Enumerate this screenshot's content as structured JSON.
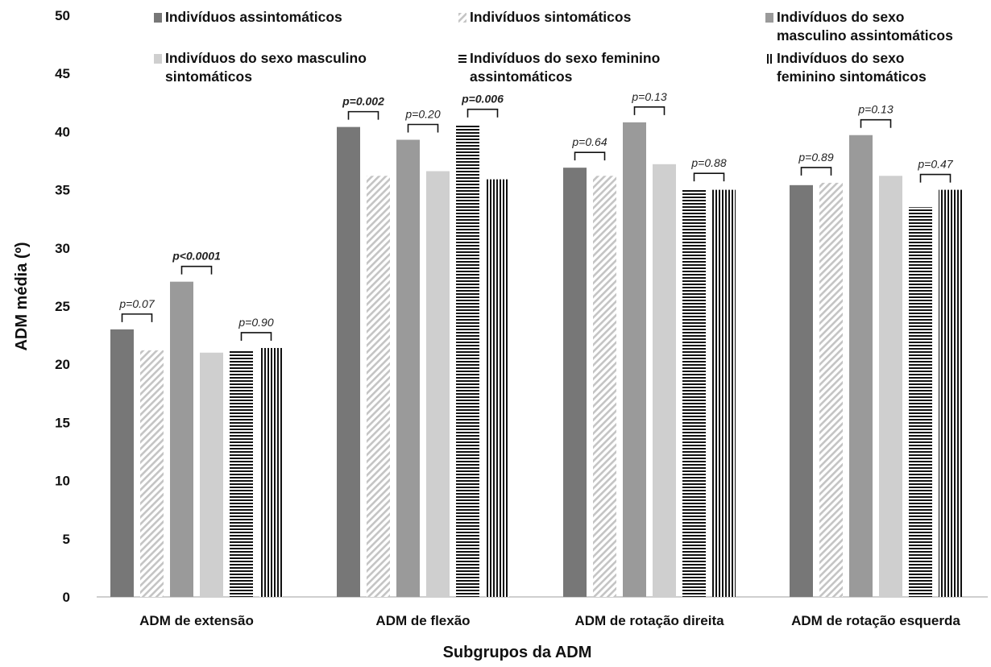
{
  "chart_data": {
    "type": "bar",
    "title": "",
    "xlabel": "Subgrupos da ADM",
    "ylabel": "ADM média (º)",
    "ylim": [
      0,
      50
    ],
    "yticks": [
      0,
      5,
      10,
      15,
      20,
      25,
      30,
      35,
      40,
      45,
      50
    ],
    "grid": false,
    "legend_position": "top",
    "categories": [
      "ADM de extensão",
      "ADM de flexão",
      "ADM de rotação direita",
      "ADM de rotação esquerda"
    ],
    "series": [
      {
        "name": "Indivíduos assintomáticos",
        "values": [
          23.0,
          40.4,
          36.9,
          35.4
        ],
        "color": "#777777",
        "pattern": "solid"
      },
      {
        "name": "Indivíduos sintomáticos",
        "values": [
          21.2,
          36.2,
          36.2,
          35.6
        ],
        "color": "#c8c8c8",
        "pattern": "diagonal"
      },
      {
        "name": "Indivíduos do sexo masculino assintomáticos",
        "values": [
          27.1,
          39.3,
          40.8,
          39.7
        ],
        "color": "#9a9a9a",
        "pattern": "solid"
      },
      {
        "name": "Indivíduos do sexo masculino sintomáticos",
        "values": [
          21.0,
          36.6,
          37.2,
          36.2
        ],
        "color": "#cfcfcf",
        "pattern": "solid"
      },
      {
        "name": "Indivíduos do sexo feminino assintomáticos",
        "values": [
          21.2,
          40.6,
          35.1,
          33.5
        ],
        "color": "#111111",
        "pattern": "horizontal"
      },
      {
        "name": "Indivíduos do sexo feminino sintomáticos",
        "values": [
          21.4,
          35.9,
          35.0,
          35.0
        ],
        "color": "#111111",
        "pattern": "vertical"
      }
    ],
    "legend_lines": [
      [
        "Indivíduos assintomáticos"
      ],
      [
        "Indivíduos sintomáticos"
      ],
      [
        "Indivíduos do sexo",
        "masculino assintomáticos"
      ],
      [
        "Indivíduos do sexo masculino",
        "sintomáticos"
      ],
      [
        "Indivíduos do sexo feminino",
        "assintomáticos"
      ],
      [
        "Indivíduos do sexo",
        "feminino sintomáticos"
      ]
    ],
    "annotations": [
      {
        "category": 0,
        "pair": [
          0,
          1
        ],
        "text": "p=0.07",
        "bold": false
      },
      {
        "category": 0,
        "pair": [
          2,
          3
        ],
        "text": "p<0.0001",
        "bold": true
      },
      {
        "category": 0,
        "pair": [
          4,
          5
        ],
        "text": "p=0.90",
        "bold": false
      },
      {
        "category": 1,
        "pair": [
          0,
          1
        ],
        "text": "p=0.002",
        "bold": true
      },
      {
        "category": 1,
        "pair": [
          2,
          3
        ],
        "text": "p=0.20",
        "bold": false
      },
      {
        "category": 1,
        "pair": [
          4,
          5
        ],
        "text": "p=0.006",
        "bold": true
      },
      {
        "category": 2,
        "pair": [
          0,
          1
        ],
        "text": "p=0.64",
        "bold": false
      },
      {
        "category": 2,
        "pair": [
          2,
          3
        ],
        "text": "p=0.13",
        "bold": false
      },
      {
        "category": 2,
        "pair": [
          4,
          5
        ],
        "text": "p=0.88",
        "bold": false
      },
      {
        "category": 3,
        "pair": [
          0,
          1
        ],
        "text": "p=0.89",
        "bold": false
      },
      {
        "category": 3,
        "pair": [
          2,
          3
        ],
        "text": "p=0.13",
        "bold": false
      },
      {
        "category": 3,
        "pair": [
          4,
          5
        ],
        "text": "p=0.47",
        "bold": false
      }
    ]
  }
}
